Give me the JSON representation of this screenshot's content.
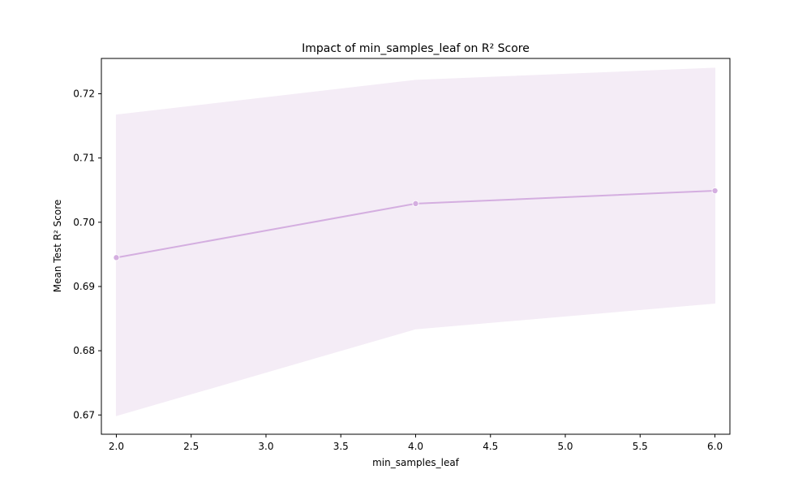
{
  "chart_data": {
    "type": "line",
    "title": "Impact of min_samples_leaf on R² Score",
    "xlabel": "min_samples_leaf",
    "ylabel": "Mean Test R² Score",
    "xlim": [
      1.9,
      6.1
    ],
    "ylim": [
      0.667,
      0.7255
    ],
    "x_ticks": [
      2.0,
      2.5,
      3.0,
      3.5,
      4.0,
      4.5,
      5.0,
      5.5,
      6.0
    ],
    "x_tick_labels": [
      "2.0",
      "2.5",
      "3.0",
      "3.5",
      "4.0",
      "4.5",
      "5.0",
      "5.5",
      "6.0"
    ],
    "y_ticks": [
      0.67,
      0.68,
      0.69,
      0.7,
      0.71,
      0.72
    ],
    "y_tick_labels": [
      "0.67",
      "0.68",
      "0.69",
      "0.70",
      "0.71",
      "0.72"
    ],
    "grid": false,
    "series": [
      {
        "x": [
          2,
          4,
          6
        ],
        "y": [
          0.6945,
          0.7029,
          0.7049
        ],
        "band_lower": [
          0.6699,
          0.6834,
          0.6874
        ],
        "band_upper": [
          0.7167,
          0.7221,
          0.724
        ],
        "color": "#d4aee0",
        "band_color": "#f4ecf6"
      }
    ]
  }
}
